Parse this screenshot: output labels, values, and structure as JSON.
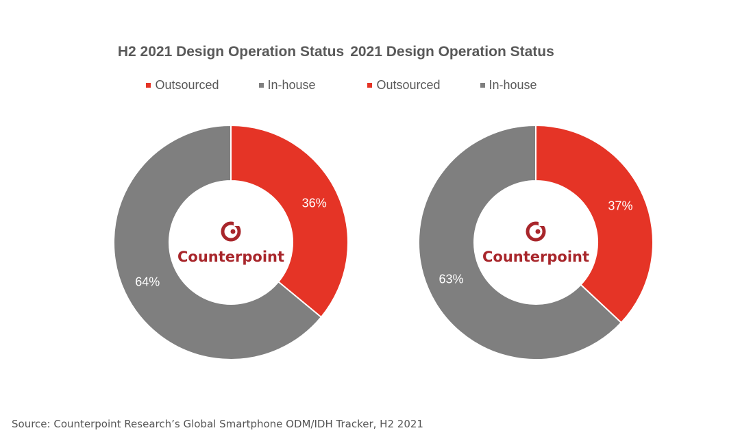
{
  "colors": {
    "outsourced": "#e53426",
    "inhouse": "#7f7f7f",
    "text": "#595959",
    "brand": "#a8262b"
  },
  "brand": {
    "logo_text": "Counterpoint"
  },
  "chart_data": [
    {
      "type": "pie",
      "title": "H2 2021 Design Operation Status",
      "legend": [
        {
          "label": "Outsourced",
          "color": "#e53426"
        },
        {
          "label": "In-house",
          "color": "#7f7f7f"
        }
      ],
      "categories": [
        "Outsourced",
        "In-house"
      ],
      "values": [
        36,
        64
      ],
      "labels": [
        "36%",
        "64%"
      ],
      "legend_position": "top"
    },
    {
      "type": "pie",
      "title": "2021 Design Operation Status",
      "legend": [
        {
          "label": "Outsourced",
          "color": "#e53426"
        },
        {
          "label": "In-house",
          "color": "#7f7f7f"
        }
      ],
      "categories": [
        "Outsourced",
        "In-house"
      ],
      "values": [
        37,
        63
      ],
      "labels": [
        "37%",
        "63%"
      ],
      "legend_position": "top"
    }
  ],
  "source": "Source: Counterpoint Research’s Global Smartphone ODM/IDH Tracker, H2 2021"
}
